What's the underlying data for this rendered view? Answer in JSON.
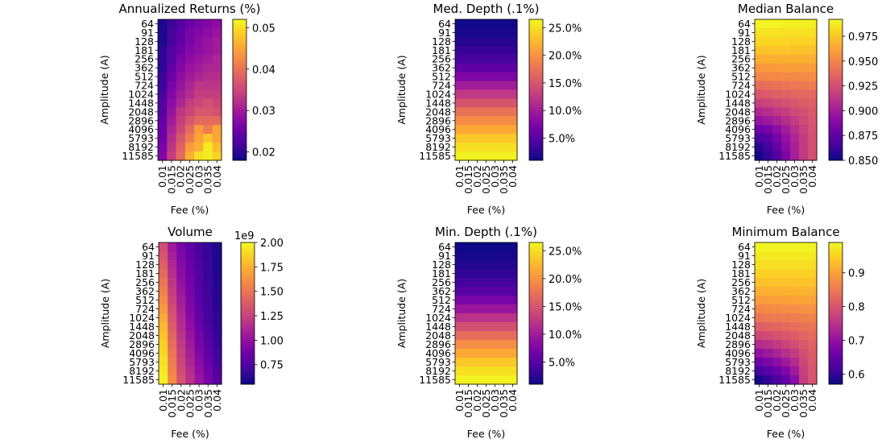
{
  "chart_data": [
    {
      "type": "heatmap",
      "title": "Annualized Returns (%)",
      "xlabel": "Fee (%)",
      "ylabel": "Amplitude (A)",
      "x": [
        "0.01",
        "0.015",
        "0.02",
        "0.025",
        "0.03",
        "0.035",
        "0.04"
      ],
      "y": [
        "64",
        "91",
        "128",
        "181",
        "256",
        "362",
        "512",
        "724",
        "1024",
        "1448",
        "2048",
        "2896",
        "4096",
        "5793",
        "8192",
        "11585"
      ],
      "colormap": "plasma",
      "colorbar": {
        "range": [
          0.018,
          0.052
        ],
        "ticks": [
          0.02,
          0.03,
          0.04,
          0.05
        ],
        "tick_labels": [
          "0.02",
          "0.03",
          "0.04",
          "0.05"
        ],
        "offset_label": ""
      },
      "values": [
        [
          0.019,
          0.021,
          0.023,
          0.025,
          0.026,
          0.027,
          0.028
        ],
        [
          0.019,
          0.022,
          0.024,
          0.026,
          0.027,
          0.028,
          0.029
        ],
        [
          0.019,
          0.022,
          0.024,
          0.026,
          0.028,
          0.029,
          0.03
        ],
        [
          0.02,
          0.023,
          0.025,
          0.027,
          0.028,
          0.029,
          0.03
        ],
        [
          0.02,
          0.023,
          0.026,
          0.028,
          0.029,
          0.03,
          0.031
        ],
        [
          0.02,
          0.024,
          0.027,
          0.029,
          0.03,
          0.031,
          0.031
        ],
        [
          0.021,
          0.025,
          0.028,
          0.03,
          0.031,
          0.032,
          0.032
        ],
        [
          0.021,
          0.026,
          0.029,
          0.031,
          0.033,
          0.033,
          0.033
        ],
        [
          0.022,
          0.027,
          0.03,
          0.032,
          0.034,
          0.034,
          0.034
        ],
        [
          0.023,
          0.028,
          0.031,
          0.034,
          0.035,
          0.036,
          0.035
        ],
        [
          0.023,
          0.029,
          0.033,
          0.035,
          0.037,
          0.037,
          0.036
        ],
        [
          0.024,
          0.03,
          0.034,
          0.037,
          0.039,
          0.039,
          0.039
        ],
        [
          0.025,
          0.031,
          0.035,
          0.039,
          0.044,
          0.041,
          0.045
        ],
        [
          0.025,
          0.032,
          0.037,
          0.041,
          0.045,
          0.048,
          0.045
        ],
        [
          0.026,
          0.033,
          0.038,
          0.044,
          0.046,
          0.051,
          0.047
        ],
        [
          0.027,
          0.034,
          0.039,
          0.046,
          0.05,
          0.051,
          0.049
        ]
      ]
    },
    {
      "type": "heatmap",
      "title": "Med. Depth (.1%)",
      "xlabel": "Fee (%)",
      "ylabel": "Amplitude (A)",
      "x": [
        "0.01",
        "0.015",
        "0.02",
        "0.025",
        "0.03",
        "0.035",
        "0.04"
      ],
      "y": [
        "64",
        "91",
        "128",
        "181",
        "256",
        "362",
        "512",
        "724",
        "1024",
        "1448",
        "2048",
        "2896",
        "4096",
        "5793",
        "8192",
        "11585"
      ],
      "colormap": "plasma",
      "colorbar": {
        "range": [
          1.0,
          26.5
        ],
        "ticks": [
          5,
          10,
          15,
          20,
          25
        ],
        "tick_labels": [
          "5.0%",
          "10.0%",
          "15.0%",
          "20.0%",
          "25.0%"
        ],
        "offset_label": ""
      },
      "row_values": [
        1.2,
        1.6,
        2.2,
        3.0,
        4.0,
        5.5,
        7.5,
        10.0,
        12.5,
        15.0,
        17.5,
        19.5,
        21.5,
        23.5,
        25.0,
        26.0
      ]
    },
    {
      "type": "heatmap",
      "title": "Median Balance",
      "xlabel": "Fee (%)",
      "ylabel": "Amplitude (A)",
      "x": [
        "0.01",
        "0.015",
        "0.02",
        "0.025",
        "0.03",
        "0.035",
        "0.04"
      ],
      "y": [
        "64",
        "91",
        "128",
        "181",
        "256",
        "362",
        "512",
        "724",
        "1024",
        "1448",
        "2048",
        "2896",
        "4096",
        "5793",
        "8192",
        "11585"
      ],
      "colormap": "plasma",
      "colorbar": {
        "range": [
          0.85,
          0.992
        ],
        "ticks": [
          0.85,
          0.875,
          0.9,
          0.925,
          0.95,
          0.975
        ],
        "tick_labels": [
          "0.850",
          "0.875",
          "0.900",
          "0.925",
          "0.950",
          "0.975"
        ],
        "offset_label": ""
      },
      "values": [
        [
          0.99,
          0.99,
          0.99,
          0.989,
          0.989,
          0.989,
          0.989
        ],
        [
          0.985,
          0.985,
          0.985,
          0.984,
          0.984,
          0.984,
          0.984
        ],
        [
          0.98,
          0.98,
          0.98,
          0.98,
          0.979,
          0.979,
          0.979
        ],
        [
          0.974,
          0.974,
          0.974,
          0.974,
          0.973,
          0.973,
          0.973
        ],
        [
          0.966,
          0.967,
          0.967,
          0.967,
          0.967,
          0.967,
          0.967
        ],
        [
          0.958,
          0.959,
          0.959,
          0.96,
          0.96,
          0.96,
          0.96
        ],
        [
          0.95,
          0.951,
          0.951,
          0.952,
          0.952,
          0.953,
          0.953
        ],
        [
          0.939,
          0.94,
          0.942,
          0.943,
          0.944,
          0.945,
          0.946
        ],
        [
          0.929,
          0.931,
          0.933,
          0.934,
          0.936,
          0.937,
          0.938
        ],
        [
          0.918,
          0.92,
          0.923,
          0.926,
          0.929,
          0.931,
          0.933
        ],
        [
          0.906,
          0.909,
          0.913,
          0.917,
          0.922,
          0.926,
          0.93
        ],
        [
          0.895,
          0.898,
          0.903,
          0.909,
          0.915,
          0.922,
          0.928
        ],
        [
          0.879,
          0.883,
          0.892,
          0.9,
          0.909,
          0.918,
          0.927
        ],
        [
          0.868,
          0.872,
          0.883,
          0.894,
          0.905,
          0.916,
          0.926
        ],
        [
          0.858,
          0.865,
          0.876,
          0.889,
          0.903,
          0.915,
          0.926
        ],
        [
          0.852,
          0.86,
          0.87,
          0.885,
          0.901,
          0.914,
          0.926
        ]
      ]
    },
    {
      "type": "heatmap",
      "title": "Volume",
      "xlabel": "Fee (%)",
      "ylabel": "Amplitude (A)",
      "x": [
        "0.01",
        "0.015",
        "0.02",
        "0.025",
        "0.03",
        "0.035",
        "0.04"
      ],
      "y": [
        "64",
        "91",
        "128",
        "181",
        "256",
        "362",
        "512",
        "724",
        "1024",
        "1448",
        "2048",
        "2896",
        "4096",
        "5793",
        "8192",
        "11585"
      ],
      "colormap": "plasma",
      "colorbar": {
        "range": [
          0.55,
          2.0
        ],
        "ticks": [
          0.75,
          1.0,
          1.25,
          1.5,
          1.75,
          2.0
        ],
        "tick_labels": [
          "0.75",
          "1.00",
          "1.25",
          "1.50",
          "1.75",
          "2.00"
        ],
        "offset_label": "1e9"
      },
      "values": [
        [
          1.3,
          1.05,
          0.9,
          0.8,
          0.72,
          0.66,
          0.6
        ],
        [
          1.35,
          1.08,
          0.92,
          0.81,
          0.73,
          0.66,
          0.6
        ],
        [
          1.4,
          1.12,
          0.94,
          0.83,
          0.74,
          0.67,
          0.6
        ],
        [
          1.45,
          1.15,
          0.97,
          0.85,
          0.75,
          0.67,
          0.61
        ],
        [
          1.5,
          1.19,
          1.0,
          0.87,
          0.76,
          0.68,
          0.61
        ],
        [
          1.55,
          1.22,
          1.03,
          0.89,
          0.77,
          0.69,
          0.62
        ],
        [
          1.6,
          1.26,
          1.06,
          0.91,
          0.78,
          0.7,
          0.62
        ],
        [
          1.66,
          1.3,
          1.09,
          0.93,
          0.8,
          0.71,
          0.63
        ],
        [
          1.72,
          1.34,
          1.12,
          0.96,
          0.82,
          0.72,
          0.64
        ],
        [
          1.77,
          1.38,
          1.15,
          0.99,
          0.84,
          0.74,
          0.65
        ],
        [
          1.82,
          1.42,
          1.18,
          1.02,
          0.87,
          0.76,
          0.66
        ],
        [
          1.86,
          1.46,
          1.21,
          1.05,
          0.9,
          0.78,
          0.68
        ],
        [
          1.89,
          1.5,
          1.24,
          1.08,
          0.93,
          0.81,
          0.7
        ],
        [
          1.92,
          1.53,
          1.27,
          1.11,
          0.96,
          0.84,
          0.72
        ],
        [
          1.95,
          1.56,
          1.3,
          1.14,
          0.99,
          0.87,
          0.75
        ],
        [
          1.98,
          1.6,
          1.33,
          1.17,
          1.02,
          0.9,
          0.78
        ]
      ]
    },
    {
      "type": "heatmap",
      "title": "Min. Depth (.1%)",
      "xlabel": "Fee (%)",
      "ylabel": "Amplitude (A)",
      "x": [
        "0.01",
        "0.015",
        "0.02",
        "0.025",
        "0.03",
        "0.035",
        "0.04"
      ],
      "y": [
        "64",
        "91",
        "128",
        "181",
        "256",
        "362",
        "512",
        "724",
        "1024",
        "1448",
        "2048",
        "2896",
        "4096",
        "5793",
        "8192",
        "11585"
      ],
      "colormap": "plasma",
      "colorbar": {
        "range": [
          1.0,
          26.5
        ],
        "ticks": [
          5,
          10,
          15,
          20,
          25
        ],
        "tick_labels": [
          "5.0%",
          "10.0%",
          "15.0%",
          "20.0%",
          "25.0%"
        ],
        "offset_label": ""
      },
      "row_values": [
        1.1,
        1.5,
        2.0,
        2.7,
        3.7,
        5.0,
        7.0,
        9.5,
        12.0,
        14.5,
        17.0,
        19.5,
        21.5,
        23.5,
        25.0,
        26.0
      ]
    },
    {
      "type": "heatmap",
      "title": "Minimum Balance",
      "xlabel": "Fee (%)",
      "ylabel": "Amplitude (A)",
      "x": [
        "0.01",
        "0.015",
        "0.02",
        "0.025",
        "0.03",
        "0.035",
        "0.04"
      ],
      "y": [
        "64",
        "91",
        "128",
        "181",
        "256",
        "362",
        "512",
        "724",
        "1024",
        "1448",
        "2048",
        "2896",
        "4096",
        "5793",
        "8192",
        "11585"
      ],
      "colormap": "plasma",
      "colorbar": {
        "range": [
          0.57,
          0.99
        ],
        "ticks": [
          0.6,
          0.7,
          0.8,
          0.9
        ],
        "tick_labels": [
          "0.6",
          "0.7",
          "0.8",
          "0.9"
        ],
        "offset_label": ""
      },
      "values": [
        [
          0.985,
          0.985,
          0.985,
          0.985,
          0.985,
          0.985,
          0.985
        ],
        [
          0.975,
          0.975,
          0.975,
          0.975,
          0.975,
          0.975,
          0.975
        ],
        [
          0.965,
          0.965,
          0.965,
          0.965,
          0.965,
          0.965,
          0.965
        ],
        [
          0.95,
          0.95,
          0.95,
          0.95,
          0.95,
          0.95,
          0.95
        ],
        [
          0.935,
          0.935,
          0.935,
          0.935,
          0.935,
          0.936,
          0.937
        ],
        [
          0.915,
          0.916,
          0.917,
          0.918,
          0.919,
          0.92,
          0.921
        ],
        [
          0.895,
          0.896,
          0.898,
          0.899,
          0.9,
          0.902,
          0.904
        ],
        [
          0.87,
          0.872,
          0.874,
          0.876,
          0.878,
          0.88,
          0.883
        ],
        [
          0.845,
          0.848,
          0.851,
          0.854,
          0.857,
          0.86,
          0.864
        ],
        [
          0.815,
          0.82,
          0.825,
          0.83,
          0.835,
          0.84,
          0.846
        ],
        [
          0.78,
          0.787,
          0.795,
          0.803,
          0.812,
          0.822,
          0.832
        ],
        [
          0.74,
          0.75,
          0.762,
          0.775,
          0.79,
          0.805,
          0.82
        ],
        [
          0.7,
          0.712,
          0.728,
          0.745,
          0.765,
          0.79,
          0.812
        ],
        [
          0.66,
          0.673,
          0.693,
          0.715,
          0.74,
          0.78,
          0.806
        ],
        [
          0.62,
          0.635,
          0.655,
          0.675,
          0.715,
          0.77,
          0.802
        ],
        [
          0.58,
          0.6,
          0.625,
          0.65,
          0.69,
          0.765,
          0.8
        ]
      ]
    }
  ]
}
